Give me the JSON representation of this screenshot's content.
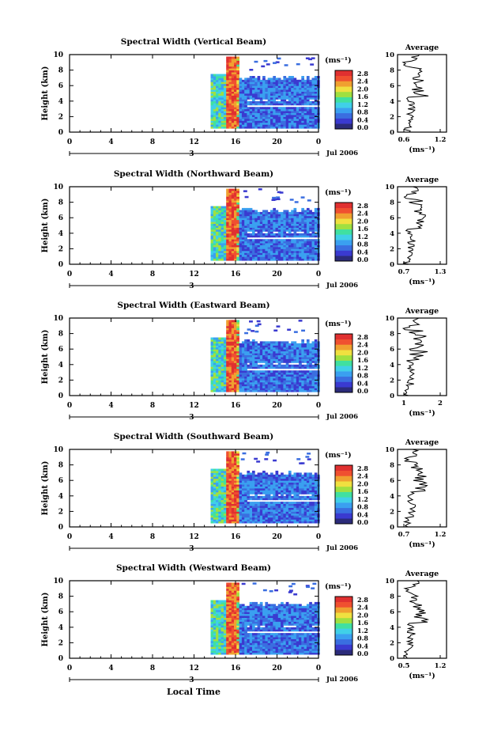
{
  "figure": {
    "xlabel": "Local Time",
    "date_label": "Jul 2006",
    "day_label": "3",
    "colorbar_unit": "(ms⁻¹)",
    "avg_title": "Average",
    "avg_unit": "(ms⁻¹)",
    "ylabel": "Height (km)",
    "colormap": [
      "#2b2b7a",
      "#3a3ad0",
      "#3a6ee0",
      "#3aa0f0",
      "#40d0e8",
      "#40e0a0",
      "#a0e040",
      "#f0e040",
      "#f0a030",
      "#f05030",
      "#e03030"
    ]
  },
  "chart_data": [
    {
      "type": "heatmap",
      "title": "Spectral Width (Vertical Beam)",
      "x_ticks": [
        "0",
        "4",
        "8",
        "12",
        "16",
        "20",
        "0"
      ],
      "y_ticks": [
        "0",
        "2",
        "4",
        "6",
        "8",
        "10"
      ],
      "xlim": [
        0,
        24
      ],
      "ylim": [
        0,
        10
      ],
      "colorbar_ticks": [
        "0.0",
        "0.4",
        "0.8",
        "1.2",
        "1.6",
        "2.0",
        "2.4",
        "2.8"
      ],
      "average": {
        "x_ticks": [
          "0.6",
          "1.2"
        ],
        "xlim": [
          0.6,
          1.2
        ],
        "y_ticks": [
          "0",
          "2",
          "4",
          "6",
          "8",
          "10"
        ]
      }
    },
    {
      "type": "heatmap",
      "title": "Spectral Width (Northward Beam)",
      "x_ticks": [
        "0",
        "4",
        "8",
        "12",
        "16",
        "20",
        "0"
      ],
      "y_ticks": [
        "0",
        "2",
        "4",
        "6",
        "8",
        "10"
      ],
      "xlim": [
        0,
        24
      ],
      "ylim": [
        0,
        10
      ],
      "colorbar_ticks": [
        "0.0",
        "0.4",
        "0.8",
        "1.2",
        "1.6",
        "2.0",
        "2.4",
        "2.8"
      ],
      "average": {
        "x_ticks": [
          "0.7",
          "1.3"
        ],
        "xlim": [
          0.7,
          1.3
        ],
        "y_ticks": [
          "0",
          "2",
          "4",
          "6",
          "8",
          "10"
        ]
      }
    },
    {
      "type": "heatmap",
      "title": "Spectral Width (Eastward Beam)",
      "x_ticks": [
        "0",
        "4",
        "8",
        "12",
        "16",
        "20",
        "0"
      ],
      "y_ticks": [
        "0",
        "2",
        "4",
        "6",
        "8",
        "10"
      ],
      "xlim": [
        0,
        24
      ],
      "ylim": [
        0,
        10
      ],
      "colorbar_ticks": [
        "0.0",
        "0.4",
        "0.8",
        "1.2",
        "1.6",
        "2.0",
        "2.4",
        "2.8"
      ],
      "average": {
        "x_ticks": [
          "1",
          "2"
        ],
        "xlim": [
          0.7,
          2.2
        ],
        "y_ticks": [
          "0",
          "2",
          "4",
          "6",
          "8",
          "10"
        ]
      }
    },
    {
      "type": "heatmap",
      "title": "Spectral Width (Southward Beam)",
      "x_ticks": [
        "0",
        "4",
        "8",
        "12",
        "16",
        "20",
        "0"
      ],
      "y_ticks": [
        "0",
        "2",
        "4",
        "6",
        "8",
        "10"
      ],
      "xlim": [
        0,
        24
      ],
      "ylim": [
        0,
        10
      ],
      "colorbar_ticks": [
        "0.0",
        "0.4",
        "0.8",
        "1.2",
        "1.6",
        "2.0",
        "2.4",
        "2.8"
      ],
      "average": {
        "x_ticks": [
          "0.7",
          "1.2"
        ],
        "xlim": [
          0.7,
          1.2
        ],
        "y_ticks": [
          "0",
          "2",
          "4",
          "6",
          "8",
          "10"
        ]
      }
    },
    {
      "type": "heatmap",
      "title": "Spectral Width (Westward Beam)",
      "x_ticks": [
        "0",
        "4",
        "8",
        "12",
        "16",
        "20",
        "0"
      ],
      "y_ticks": [
        "0",
        "2",
        "4",
        "6",
        "8",
        "10"
      ],
      "xlim": [
        0,
        24
      ],
      "ylim": [
        0,
        10
      ],
      "colorbar_ticks": [
        "0.0",
        "0.4",
        "0.8",
        "1.2",
        "1.6",
        "2.0",
        "2.4",
        "2.8"
      ],
      "average": {
        "x_ticks": [
          "0.5",
          "1.2"
        ],
        "xlim": [
          0.5,
          1.2
        ],
        "y_ticks": [
          "0",
          "2",
          "4",
          "6",
          "8",
          "10"
        ]
      }
    }
  ]
}
